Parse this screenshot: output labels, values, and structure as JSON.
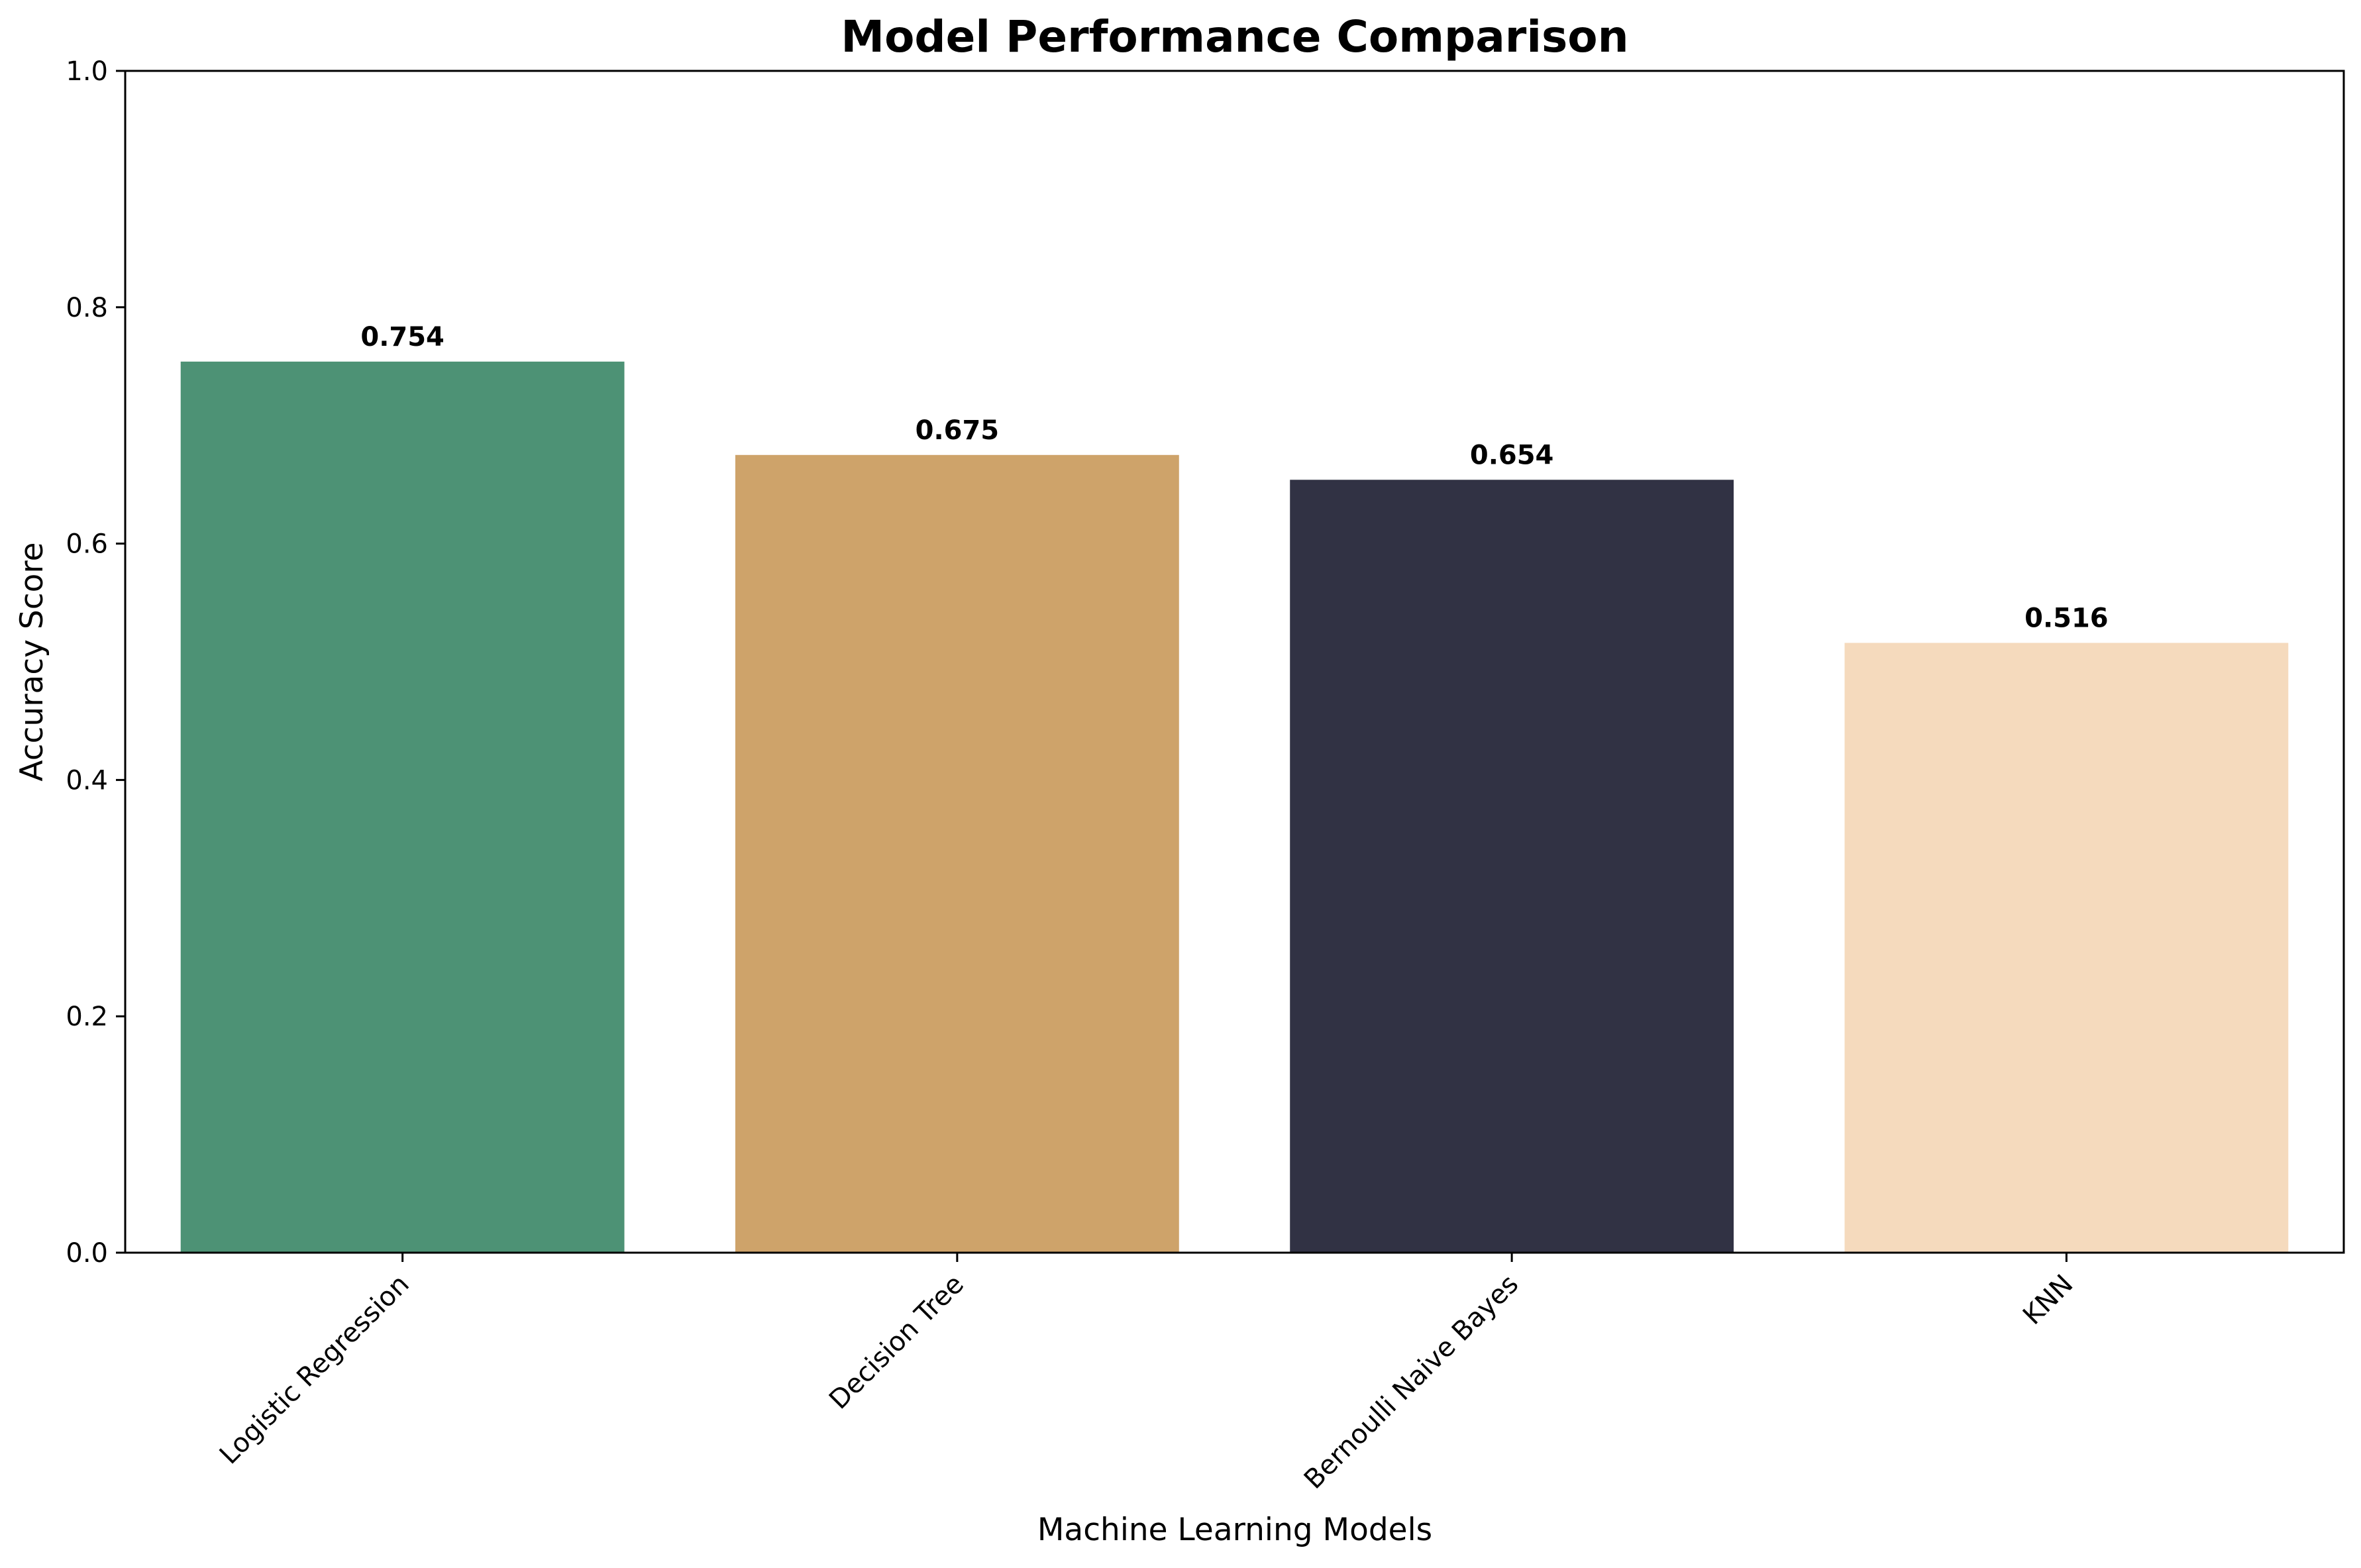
{
  "chart_data": {
    "type": "bar",
    "title": "Model Performance Comparison",
    "xlabel": "Machine Learning Models",
    "ylabel": "Accuracy Score",
    "categories": [
      "Logistic Regression",
      "Decision Tree",
      "Bernoulli Naive Bayes",
      "KNN"
    ],
    "values": [
      0.754,
      0.675,
      0.654,
      0.516
    ],
    "value_labels": [
      "0.754",
      "0.675",
      "0.654",
      "0.516"
    ],
    "colors": [
      "#4d9275",
      "#cea36a",
      "#313244",
      "#f5dabd"
    ],
    "ylim": [
      0,
      1.0
    ],
    "yticks": [
      0.0,
      0.2,
      0.4,
      0.6,
      0.8,
      1.0
    ],
    "ytick_labels": [
      "0.0",
      "0.2",
      "0.4",
      "0.6",
      "0.8",
      "1.0"
    ],
    "xtick_rotation": "45",
    "grid": false,
    "legend": "none"
  }
}
